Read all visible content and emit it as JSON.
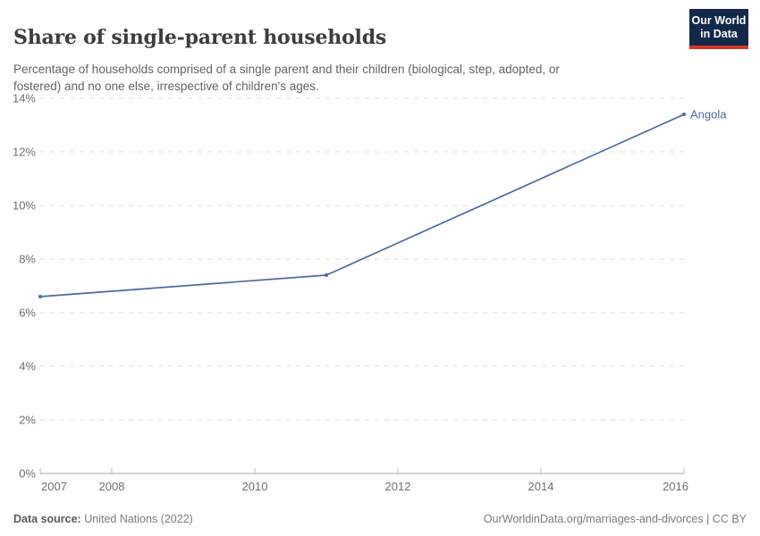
{
  "header": {
    "title": "Share of single-parent households",
    "subtitle": "Percentage of households comprised of a single parent and their children (biological, step, adopted, or\nfostered) and no one else, irrespective of children's ages.",
    "logo_line1": "Our World",
    "logo_line2": "in Data"
  },
  "chart_data": {
    "type": "line",
    "title": "Share of single-parent households",
    "xlabel": "",
    "ylabel": "",
    "xlim": [
      2007,
      2016
    ],
    "ylim": [
      0,
      14
    ],
    "grid": "horizontal-dashed",
    "legend_position": "end-of-line-label",
    "x_ticks": [
      2007,
      2008,
      2010,
      2012,
      2014,
      2016
    ],
    "y_ticks": [
      {
        "value": 0,
        "label": "0%"
      },
      {
        "value": 2,
        "label": "2%"
      },
      {
        "value": 4,
        "label": "4%"
      },
      {
        "value": 6,
        "label": "6%"
      },
      {
        "value": 8,
        "label": "8%"
      },
      {
        "value": 10,
        "label": "10%"
      },
      {
        "value": 12,
        "label": "12%"
      },
      {
        "value": 14,
        "label": "14%"
      }
    ],
    "series": [
      {
        "name": "Angola",
        "color": "#4C6A9C",
        "points": [
          {
            "year": 2007,
            "value": 6.6
          },
          {
            "year": 2011,
            "value": 7.4
          },
          {
            "year": 2016,
            "value": 13.4
          }
        ]
      }
    ]
  },
  "footer": {
    "source_label": "Data source:",
    "source_value": "United Nations (2022)",
    "right_text": "OurWorldinData.org/marriages-and-divorces | CC BY"
  },
  "colors": {
    "series_blue": "#4C6A9C",
    "logo_navy": "#12294b",
    "logo_red": "#d8352a",
    "gridline": "#dcdcdc",
    "axis_line": "#a3a3a3",
    "tick_text": "#6e6e6e"
  }
}
